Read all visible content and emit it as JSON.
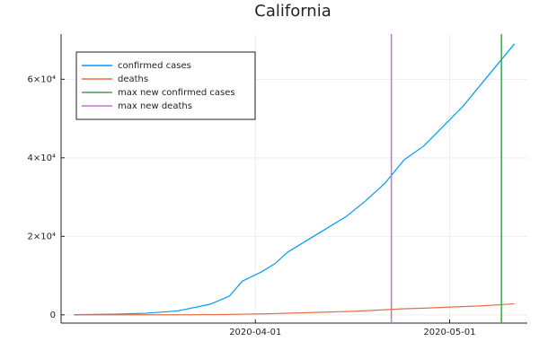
{
  "chart_data": {
    "type": "line",
    "title": "California",
    "x": [
      "2020-03-04",
      "2020-03-10",
      "2020-03-15",
      "2020-03-20",
      "2020-03-25",
      "2020-03-28",
      "2020-03-30",
      "2020-04-02",
      "2020-04-04",
      "2020-04-06",
      "2020-04-09",
      "2020-04-12",
      "2020-04-15",
      "2020-04-18",
      "2020-04-21",
      "2020-04-24",
      "2020-04-27",
      "2020-04-30",
      "2020-05-03",
      "2020-05-06",
      "2020-05-09",
      "2020-05-11"
    ],
    "series": [
      {
        "name": "confirmed cases",
        "color": "#009AFA",
        "values": [
          50,
          150,
          400,
          1000,
          2700,
          4800,
          8600,
          11000,
          13000,
          16000,
          19000,
          22000,
          25000,
          29000,
          33500,
          39500,
          43000,
          48000,
          53000,
          59000,
          65000,
          69000
        ]
      },
      {
        "name": "deaths",
        "color": "#E36F47",
        "values": [
          1,
          3,
          8,
          20,
          55,
          100,
          170,
          250,
          320,
          420,
          560,
          700,
          850,
          1050,
          1300,
          1550,
          1700,
          1900,
          2100,
          2300,
          2600,
          2800
        ]
      }
    ],
    "vlines": [
      {
        "name": "max new confirmed cases",
        "color": "#3EA44E",
        "x": "2020-05-09"
      },
      {
        "name": "max new deaths",
        "color": "#C371D2",
        "x": "2020-04-22"
      }
    ],
    "xlim": [
      "2020-03-02",
      "2020-05-13"
    ],
    "xticks": [
      "2020-04-01",
      "2020-05-01"
    ],
    "ylim": [
      -2100,
      71500
    ],
    "yticks": [
      0,
      {
        "value": 20000,
        "label": "2×10⁴"
      },
      {
        "value": 40000,
        "label": "4×10⁴"
      },
      {
        "value": 60000,
        "label": "6×10⁴"
      }
    ],
    "grid": true,
    "legend": "top-left"
  }
}
